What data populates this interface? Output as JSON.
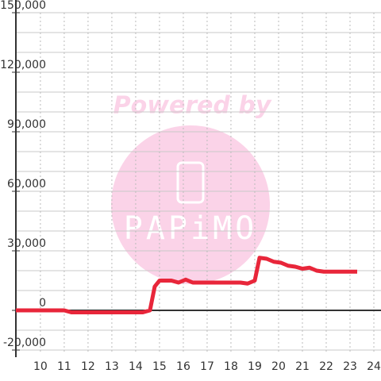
{
  "chart_data": {
    "type": "line",
    "watermark": {
      "top": "Powered by",
      "logo": "PAPiMO"
    },
    "x": [
      8.97,
      11.0,
      11.3,
      14.3,
      14.6,
      14.8,
      15.0,
      15.5,
      15.8,
      16.1,
      16.4,
      18.4,
      18.7,
      19.0,
      19.2,
      19.5,
      19.8,
      20.1,
      20.4,
      20.7,
      21.0,
      21.3,
      21.6,
      21.9,
      23.3
    ],
    "series": [
      {
        "color": "#e8263a",
        "values": [
          0,
          0,
          -1000,
          -1000,
          0,
          12000,
          15000,
          15000,
          14000,
          15500,
          14000,
          14000,
          13500,
          15000,
          26500,
          26000,
          24500,
          24000,
          22500,
          22000,
          21000,
          21500,
          20000,
          19500,
          19500
        ]
      }
    ],
    "xlim": [
      8.97,
      24.3
    ],
    "xticks": [
      10,
      11,
      12,
      13,
      14,
      15,
      16,
      17,
      18,
      19,
      20,
      21,
      22,
      23,
      24
    ],
    "ylim": [
      -22000,
      150000
    ],
    "yticks": [
      {
        "value": 150000,
        "label": "150,000"
      },
      {
        "value": 120000,
        "label": "120,000"
      },
      {
        "value": 90000,
        "label": "90,000"
      },
      {
        "value": 60000,
        "label": "60,000"
      },
      {
        "value": 30000,
        "label": "30,000"
      },
      0,
      {
        "value": -20000,
        "label": "-20,000"
      }
    ],
    "ygrid": [
      -20000,
      -10000,
      10000,
      20000,
      30000,
      40000,
      50000,
      60000,
      70000,
      80000,
      90000,
      100000,
      110000,
      120000,
      130000,
      140000,
      150000
    ],
    "grid": true
  }
}
